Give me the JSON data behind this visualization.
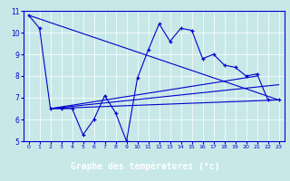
{
  "title": "Graphe des températures (°c)",
  "bg_color": "#c8e8e8",
  "plot_bg_color": "#c8e8e8",
  "xlabel_bg": "#00008b",
  "xlabel_color": "#ffffff",
  "line_color": "#0000cc",
  "grid_color": "#ffffff",
  "xlim": [
    -0.5,
    23.5
  ],
  "ylim": [
    5,
    11
  ],
  "xticks": [
    0,
    1,
    2,
    3,
    4,
    5,
    6,
    7,
    8,
    9,
    10,
    11,
    12,
    13,
    14,
    15,
    16,
    17,
    18,
    19,
    20,
    21,
    22,
    23
  ],
  "yticks": [
    5,
    6,
    7,
    8,
    9,
    10,
    11
  ],
  "series1_x": [
    0,
    1,
    2,
    3,
    4,
    5,
    6,
    7,
    8,
    9,
    10,
    11,
    12,
    13,
    14,
    15,
    16,
    17,
    18,
    19,
    20,
    21,
    22,
    23
  ],
  "series1_y": [
    10.8,
    10.2,
    6.5,
    6.5,
    6.5,
    5.3,
    6.0,
    7.1,
    6.3,
    5.0,
    7.9,
    9.2,
    10.4,
    9.6,
    10.2,
    10.1,
    8.8,
    9.0,
    8.5,
    8.4,
    8.0,
    8.1,
    6.9,
    6.9
  ],
  "line1_x": [
    0,
    23
  ],
  "line1_y": [
    10.8,
    6.9
  ],
  "line2_x": [
    2,
    21
  ],
  "line2_y": [
    6.5,
    8.0
  ],
  "line3_x": [
    2,
    23
  ],
  "line3_y": [
    6.5,
    7.6
  ],
  "line4_x": [
    2,
    23
  ],
  "line4_y": [
    6.5,
    6.9
  ]
}
